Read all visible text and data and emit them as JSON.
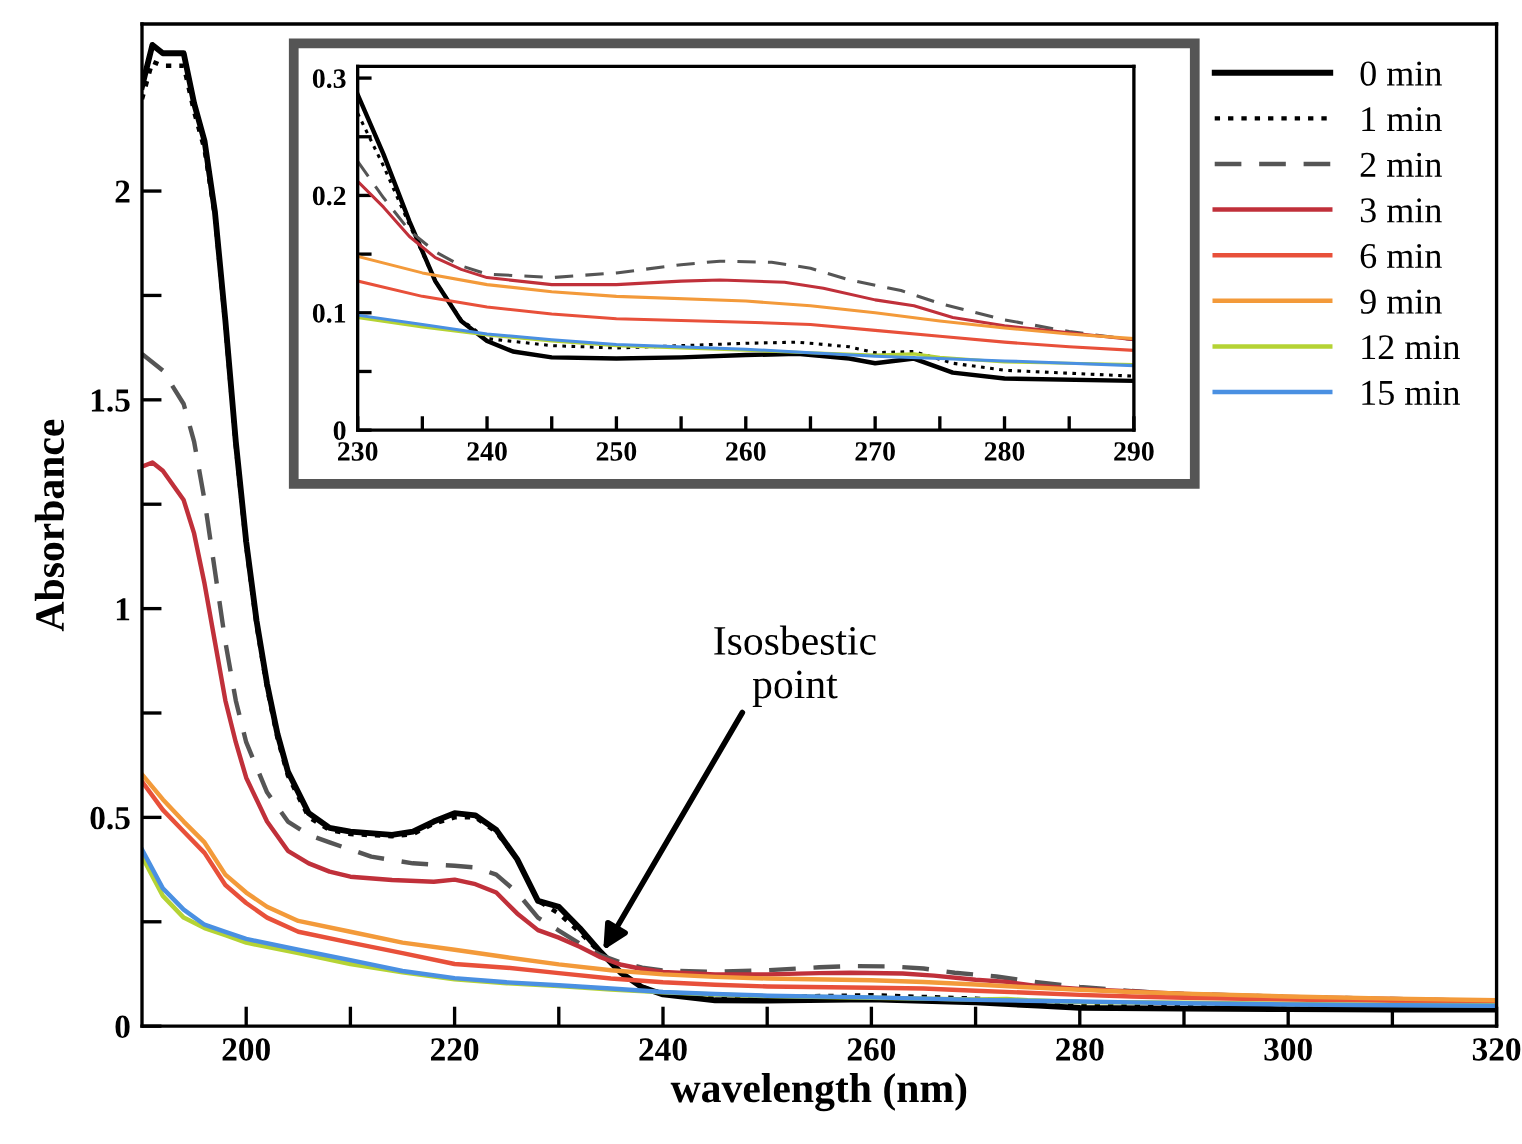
{
  "chart_data": [
    {
      "type": "line",
      "xlabel": "wavelength (nm)",
      "ylabel": "Absorbance",
      "xlim": [
        190,
        320
      ],
      "ylim": [
        0,
        2.4
      ],
      "xticks": [
        200,
        {
          "value": 210,
          "label": null
        },
        220,
        {
          "value": 230,
          "label": null
        },
        240,
        {
          "value": 250,
          "label": null
        },
        260,
        {
          "value": 270,
          "label": null
        },
        280,
        {
          "value": 290,
          "label": null
        },
        300,
        {
          "value": 310,
          "label": null
        },
        320
      ],
      "yticks": [
        0,
        {
          "value": 0.25,
          "label": null
        },
        0.5,
        {
          "value": 0.75,
          "label": null
        },
        1,
        {
          "value": 1.25,
          "label": null
        },
        1.5,
        {
          "value": 1.75,
          "label": null
        },
        2
      ],
      "grid": false,
      "legend": "top right",
      "annotations": [
        {
          "text": "Isosbestic\npoint",
          "x": 234,
          "y": 0.17
        }
      ],
      "series": [
        {
          "name": "0 min",
          "color": "#000000",
          "line_style": "solid",
          "x": [
            190,
            191,
            192,
            193,
            194,
            195,
            196,
            197,
            198,
            199,
            200,
            201,
            202,
            203,
            204,
            206,
            208,
            210,
            214,
            216,
            218,
            220,
            222,
            224,
            226,
            228,
            230,
            232,
            234,
            236,
            238,
            240,
            245,
            250,
            260,
            270,
            276,
            280,
            290,
            300,
            310,
            320
          ],
          "values": [
            2.25,
            2.35,
            2.33,
            2.33,
            2.33,
            2.21,
            2.12,
            1.95,
            1.69,
            1.4,
            1.16,
            0.97,
            0.82,
            0.7,
            0.61,
            0.51,
            0.475,
            0.466,
            0.458,
            0.466,
            0.49,
            0.51,
            0.505,
            0.47,
            0.4,
            0.3,
            0.286,
            0.235,
            0.178,
            0.127,
            0.093,
            0.076,
            0.062,
            0.061,
            0.064,
            0.057,
            0.049,
            0.044,
            0.042,
            0.041,
            0.04,
            0.04
          ]
        },
        {
          "name": "1 min",
          "color": "#000000",
          "line_style": "dotted",
          "x": [
            190,
            191,
            192,
            193,
            194,
            195,
            196,
            197,
            198,
            199,
            200,
            201,
            202,
            203,
            204,
            206,
            208,
            210,
            214,
            216,
            218,
            220,
            222,
            224,
            226,
            228,
            230,
            232,
            234,
            236,
            238,
            240,
            245,
            250,
            260,
            270,
            276,
            280,
            290,
            300,
            310,
            320
          ],
          "values": [
            2.22,
            2.31,
            2.3,
            2.3,
            2.3,
            2.19,
            2.1,
            1.94,
            1.68,
            1.39,
            1.15,
            0.96,
            0.81,
            0.69,
            0.6,
            0.5,
            0.47,
            0.46,
            0.455,
            0.46,
            0.485,
            0.5,
            0.5,
            0.465,
            0.4,
            0.3,
            0.27,
            0.225,
            0.175,
            0.127,
            0.094,
            0.078,
            0.072,
            0.07,
            0.074,
            0.066,
            0.057,
            0.051,
            0.046,
            0.045,
            0.044,
            0.043
          ]
        },
        {
          "name": "2 min",
          "color": "#555555",
          "line_style": "dashed",
          "x": [
            190,
            192,
            194,
            195,
            196,
            197,
            198,
            199,
            200,
            202,
            204,
            206,
            208,
            212,
            216,
            220,
            222,
            224,
            226,
            228,
            230,
            232,
            234,
            236,
            238,
            240,
            245,
            250,
            255,
            258,
            262,
            265,
            268,
            272,
            275,
            280,
            285,
            290,
            300,
            310,
            320
          ],
          "values": [
            1.61,
            1.57,
            1.49,
            1.4,
            1.26,
            1.09,
            0.92,
            0.78,
            0.68,
            0.56,
            0.49,
            0.458,
            0.44,
            0.406,
            0.39,
            0.384,
            0.38,
            0.363,
            0.32,
            0.26,
            0.229,
            0.198,
            0.17,
            0.152,
            0.14,
            0.133,
            0.13,
            0.134,
            0.141,
            0.144,
            0.143,
            0.138,
            0.128,
            0.119,
            0.108,
            0.094,
            0.084,
            0.077,
            0.07,
            0.065,
            0.06
          ]
        },
        {
          "name": "3 min",
          "color": "#c0303a",
          "line_style": "solid",
          "x": [
            190,
            191,
            192,
            194,
            195,
            196,
            197,
            198,
            199,
            200,
            202,
            204,
            206,
            208,
            210,
            214,
            218,
            220,
            222,
            224,
            226,
            228,
            230,
            232,
            234,
            236,
            238,
            240,
            245,
            250,
            255,
            258,
            263,
            266,
            270,
            273,
            276,
            280,
            285,
            290,
            300,
            310,
            320
          ],
          "values": [
            1.34,
            1.35,
            1.33,
            1.26,
            1.18,
            1.06,
            0.92,
            0.78,
            0.68,
            0.595,
            0.49,
            0.42,
            0.39,
            0.37,
            0.358,
            0.35,
            0.346,
            0.351,
            0.34,
            0.32,
            0.27,
            0.23,
            0.212,
            0.19,
            0.165,
            0.147,
            0.137,
            0.13,
            0.124,
            0.124,
            0.127,
            0.128,
            0.126,
            0.121,
            0.111,
            0.106,
            0.096,
            0.089,
            0.083,
            0.077,
            0.07,
            0.065,
            0.06
          ]
        },
        {
          "name": "6 min",
          "color": "#e8503a",
          "line_style": "solid",
          "x": [
            190,
            192,
            194,
            196,
            198,
            200,
            202,
            205,
            210,
            215,
            220,
            225,
            230,
            235,
            240,
            245,
            250,
            260,
            265,
            270,
            275,
            280,
            285,
            290,
            300,
            310,
            320
          ],
          "values": [
            0.586,
            0.518,
            0.466,
            0.415,
            0.338,
            0.295,
            0.26,
            0.226,
            0.2,
            0.175,
            0.149,
            0.14,
            0.127,
            0.114,
            0.105,
            0.099,
            0.095,
            0.092,
            0.09,
            0.085,
            0.08,
            0.075,
            0.071,
            0.068,
            0.064,
            0.061,
            0.058
          ]
        },
        {
          "name": "9 min",
          "color": "#f39a3a",
          "line_style": "solid",
          "x": [
            190,
            192,
            194,
            196,
            198,
            200,
            202,
            205,
            210,
            215,
            220,
            225,
            230,
            235,
            240,
            245,
            250,
            260,
            265,
            270,
            275,
            280,
            285,
            290,
            300,
            310,
            320
          ],
          "values": [
            0.603,
            0.543,
            0.49,
            0.44,
            0.363,
            0.32,
            0.286,
            0.252,
            0.226,
            0.2,
            0.183,
            0.165,
            0.148,
            0.134,
            0.124,
            0.118,
            0.114,
            0.11,
            0.106,
            0.1,
            0.093,
            0.087,
            0.082,
            0.078,
            0.071,
            0.066,
            0.062
          ]
        },
        {
          "name": "12 min",
          "color": "#b5d334",
          "line_style": "solid",
          "x": [
            190,
            192,
            194,
            196,
            198,
            200,
            205,
            210,
            215,
            220,
            225,
            230,
            235,
            240,
            245,
            250,
            260,
            265,
            270,
            273,
            275,
            280,
            290,
            300,
            310,
            320
          ],
          "values": [
            0.406,
            0.312,
            0.26,
            0.235,
            0.218,
            0.2,
            0.175,
            0.149,
            0.129,
            0.112,
            0.103,
            0.096,
            0.088,
            0.081,
            0.076,
            0.072,
            0.068,
            0.066,
            0.064,
            0.065,
            0.062,
            0.058,
            0.056,
            0.053,
            0.051,
            0.05
          ]
        },
        {
          "name": "15 min",
          "color": "#4a90e2",
          "line_style": "solid",
          "x": [
            190,
            192,
            194,
            196,
            198,
            200,
            205,
            210,
            215,
            220,
            225,
            230,
            235,
            240,
            245,
            250,
            260,
            265,
            270,
            275,
            280,
            285,
            290,
            300,
            310,
            320
          ],
          "values": [
            0.423,
            0.33,
            0.279,
            0.243,
            0.226,
            0.209,
            0.183,
            0.158,
            0.132,
            0.115,
            0.105,
            0.098,
            0.09,
            0.082,
            0.077,
            0.073,
            0.069,
            0.066,
            0.063,
            0.061,
            0.059,
            0.057,
            0.055,
            0.052,
            0.05,
            0.049
          ]
        }
      ]
    },
    {
      "type": "line",
      "xlim": [
        230,
        290
      ],
      "ylim": [
        0,
        0.31
      ],
      "xticks": [
        230,
        {
          "value": 235,
          "label": null
        },
        240,
        {
          "value": 245,
          "label": null
        },
        250,
        {
          "value": 255,
          "label": null
        },
        260,
        {
          "value": 265,
          "label": null
        },
        270,
        {
          "value": 275,
          "label": null
        },
        280,
        {
          "value": 285,
          "label": null
        },
        290
      ],
      "yticks": [
        0,
        {
          "value": 0.05,
          "label": null
        },
        0.1,
        {
          "value": 0.15,
          "label": null
        },
        0.2,
        {
          "value": 0.25,
          "label": null
        },
        0.3
      ],
      "grid": false,
      "series": [
        {
          "color": "#000000",
          "line_style": "solid",
          "x": [
            230,
            232,
            234,
            236,
            238,
            240,
            242,
            245,
            250,
            255,
            260,
            264,
            268,
            270,
            273,
            276,
            280,
            290
          ],
          "values": [
            0.286,
            0.235,
            0.178,
            0.127,
            0.093,
            0.076,
            0.067,
            0.062,
            0.061,
            0.062,
            0.064,
            0.065,
            0.061,
            0.057,
            0.061,
            0.049,
            0.044,
            0.042
          ]
        },
        {
          "color": "#000000",
          "line_style": "dotted",
          "x": [
            230,
            232,
            234,
            236,
            238,
            240,
            245,
            250,
            255,
            260,
            264,
            268,
            270,
            273,
            276,
            280,
            290
          ],
          "values": [
            0.27,
            0.225,
            0.175,
            0.127,
            0.094,
            0.078,
            0.072,
            0.07,
            0.072,
            0.074,
            0.075,
            0.071,
            0.066,
            0.067,
            0.057,
            0.051,
            0.046
          ]
        },
        {
          "color": "#555555",
          "line_style": "dashed",
          "x": [
            230,
            232,
            234,
            236,
            238,
            240,
            245,
            250,
            255,
            258,
            262,
            265,
            268,
            272,
            275,
            280,
            285,
            290
          ],
          "values": [
            0.229,
            0.198,
            0.17,
            0.152,
            0.14,
            0.133,
            0.13,
            0.134,
            0.141,
            0.144,
            0.143,
            0.138,
            0.128,
            0.119,
            0.108,
            0.094,
            0.084,
            0.077
          ]
        },
        {
          "color": "#c0303a",
          "line_style": "solid",
          "x": [
            230,
            232,
            234,
            236,
            238,
            240,
            245,
            250,
            255,
            258,
            263,
            266,
            270,
            273,
            276,
            280,
            285,
            290
          ],
          "values": [
            0.212,
            0.19,
            0.165,
            0.147,
            0.137,
            0.13,
            0.124,
            0.124,
            0.127,
            0.128,
            0.126,
            0.121,
            0.111,
            0.106,
            0.096,
            0.089,
            0.083,
            0.077
          ]
        },
        {
          "color": "#e8503a",
          "line_style": "solid",
          "x": [
            230,
            235,
            240,
            245,
            250,
            260,
            265,
            270,
            275,
            280,
            285,
            290
          ],
          "values": [
            0.127,
            0.114,
            0.105,
            0.099,
            0.095,
            0.092,
            0.09,
            0.085,
            0.08,
            0.075,
            0.071,
            0.068
          ]
        },
        {
          "color": "#f39a3a",
          "line_style": "solid",
          "x": [
            230,
            235,
            240,
            245,
            250,
            260,
            265,
            270,
            275,
            280,
            285,
            290
          ],
          "values": [
            0.148,
            0.134,
            0.124,
            0.118,
            0.114,
            0.11,
            0.106,
            0.1,
            0.093,
            0.087,
            0.082,
            0.078
          ]
        },
        {
          "color": "#b5d334",
          "line_style": "solid",
          "x": [
            230,
            235,
            240,
            245,
            250,
            260,
            265,
            270,
            273,
            275,
            280,
            290
          ],
          "values": [
            0.096,
            0.088,
            0.081,
            0.076,
            0.072,
            0.068,
            0.066,
            0.064,
            0.065,
            0.062,
            0.058,
            0.056
          ]
        },
        {
          "color": "#4a90e2",
          "line_style": "solid",
          "x": [
            230,
            235,
            240,
            245,
            250,
            260,
            265,
            270,
            275,
            280,
            285,
            290
          ],
          "values": [
            0.098,
            0.09,
            0.082,
            0.077,
            0.073,
            0.069,
            0.066,
            0.063,
            0.061,
            0.059,
            0.057,
            0.055
          ]
        }
      ]
    }
  ]
}
